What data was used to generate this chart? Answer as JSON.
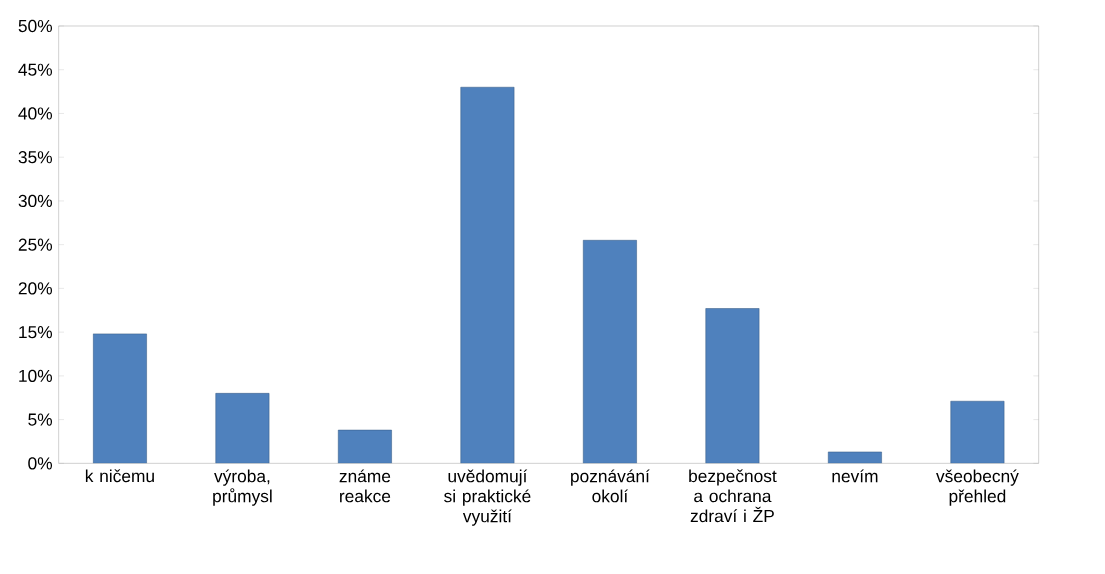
{
  "chart_data": {
    "type": "bar",
    "categories": [
      "k ničemu",
      "výroba, průmysl",
      "známe reakce",
      "uvědomují si praktické využití",
      "poznávání okolí",
      "bezpečnost a ochrana zdraví i ŽP",
      "nevím",
      "všeobecný přehled"
    ],
    "values": [
      14.8,
      8.0,
      3.8,
      43.0,
      25.5,
      17.7,
      1.3,
      7.1
    ],
    "color": "#4f81bd",
    "ylim": [
      0,
      50
    ],
    "yticks": [
      {
        "value": 0,
        "label": "0%"
      },
      {
        "value": 5,
        "label": "5%"
      },
      {
        "value": 10,
        "label": "10%"
      },
      {
        "value": 15,
        "label": "15%"
      },
      {
        "value": 20,
        "label": "20%"
      },
      {
        "value": 25,
        "label": "25%"
      },
      {
        "value": 30,
        "label": "30%"
      },
      {
        "value": 35,
        "label": "35%"
      },
      {
        "value": 40,
        "label": "40%"
      },
      {
        "value": 45,
        "label": "45%"
      },
      {
        "value": 50,
        "label": "50%"
      }
    ]
  }
}
